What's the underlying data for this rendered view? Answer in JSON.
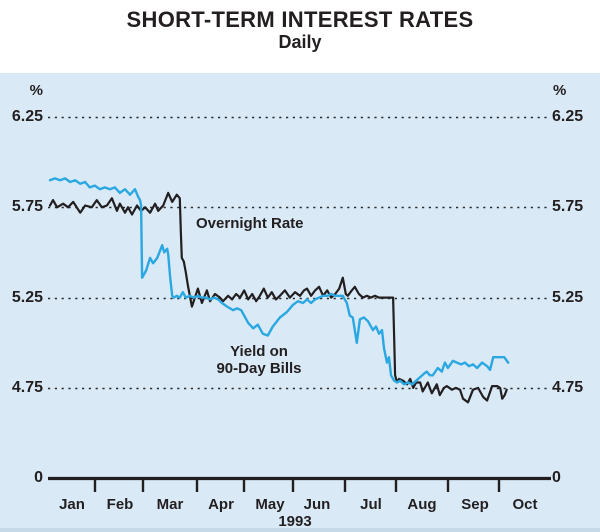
{
  "header": {
    "title": "SHORT-TERM INTEREST RATES",
    "subtitle": "Daily"
  },
  "axes": {
    "unit_left": "%",
    "unit_right": "%",
    "y_ticks": [
      "6.25",
      "5.75",
      "5.25",
      "4.75"
    ],
    "y_zero": "0",
    "x_ticks": [
      "Jan",
      "Feb",
      "Mar",
      "Apr",
      "May",
      "Jun",
      "Jul",
      "Aug",
      "Sep",
      "Oct"
    ],
    "year": "1993"
  },
  "annotations": {
    "overnight": "Overnight Rate",
    "yield_line1": "Yield on",
    "yield_line2": "90-Day Bills"
  },
  "colors": {
    "panel_background": "#d9eaf6",
    "overnight_line": "#231f20",
    "bills_line": "#2ba7e1",
    "grid": "#2b2b2b",
    "text": "#231f20"
  },
  "chart_data": {
    "type": "line",
    "title": "SHORT-TERM INTEREST RATES",
    "subtitle": "Daily",
    "xlabel": "1993 (daily, Jan through early Oct)",
    "ylabel": "%",
    "x_unit": "months since 1993-01-01",
    "x_range": [
      0,
      10
    ],
    "y_gridlines": [
      6.25,
      5.75,
      5.25,
      4.75
    ],
    "y_baseline": 0,
    "grid": "dotted-horizontal",
    "legend_position": "in-plot-annotations",
    "series": [
      {
        "name": "Overnight Rate",
        "color": "#231f20",
        "points": [
          [
            0.04,
            5.76
          ],
          [
            0.1,
            5.79
          ],
          [
            0.18,
            5.75
          ],
          [
            0.3,
            5.77
          ],
          [
            0.4,
            5.75
          ],
          [
            0.5,
            5.78
          ],
          [
            0.64,
            5.72
          ],
          [
            0.74,
            5.76
          ],
          [
            0.87,
            5.75
          ],
          [
            0.97,
            5.79
          ],
          [
            1.07,
            5.75
          ],
          [
            1.17,
            5.76
          ],
          [
            1.27,
            5.8
          ],
          [
            1.37,
            5.73
          ],
          [
            1.43,
            5.77
          ],
          [
            1.53,
            5.72
          ],
          [
            1.59,
            5.75
          ],
          [
            1.67,
            5.71
          ],
          [
            1.77,
            5.76
          ],
          [
            1.85,
            5.73
          ],
          [
            1.93,
            5.75
          ],
          [
            2.03,
            5.72
          ],
          [
            2.13,
            5.77
          ],
          [
            2.19,
            5.73
          ],
          [
            2.29,
            5.76
          ],
          [
            2.39,
            5.83
          ],
          [
            2.47,
            5.78
          ],
          [
            2.56,
            5.82
          ],
          [
            2.62,
            5.8
          ],
          [
            2.64,
            5.62
          ],
          [
            2.66,
            5.47
          ],
          [
            2.7,
            5.45
          ],
          [
            2.74,
            5.39
          ],
          [
            2.78,
            5.32
          ],
          [
            2.86,
            5.2
          ],
          [
            2.98,
            5.3
          ],
          [
            3.06,
            5.22
          ],
          [
            3.16,
            5.29
          ],
          [
            3.22,
            5.23
          ],
          [
            3.32,
            5.27
          ],
          [
            3.42,
            5.25
          ],
          [
            3.48,
            5.23
          ],
          [
            3.58,
            5.26
          ],
          [
            3.66,
            5.24
          ],
          [
            3.74,
            5.27
          ],
          [
            3.82,
            5.25
          ],
          [
            3.9,
            5.29
          ],
          [
            3.98,
            5.24
          ],
          [
            4.06,
            5.27
          ],
          [
            4.14,
            5.23
          ],
          [
            4.21,
            5.26
          ],
          [
            4.29,
            5.3
          ],
          [
            4.37,
            5.25
          ],
          [
            4.45,
            5.28
          ],
          [
            4.53,
            5.24
          ],
          [
            4.61,
            5.26
          ],
          [
            4.71,
            5.29
          ],
          [
            4.81,
            5.25
          ],
          [
            4.91,
            5.28
          ],
          [
            5.01,
            5.26
          ],
          [
            5.09,
            5.29
          ],
          [
            5.15,
            5.3
          ],
          [
            5.23,
            5.26
          ],
          [
            5.31,
            5.29
          ],
          [
            5.39,
            5.31
          ],
          [
            5.47,
            5.26
          ],
          [
            5.55,
            5.29
          ],
          [
            5.63,
            5.25
          ],
          [
            5.71,
            5.27
          ],
          [
            5.79,
            5.3
          ],
          [
            5.86,
            5.36
          ],
          [
            5.92,
            5.27
          ],
          [
            5.96,
            5.26
          ],
          [
            6.04,
            5.29
          ],
          [
            6.1,
            5.31
          ],
          [
            6.18,
            5.27
          ],
          [
            6.26,
            5.25
          ],
          [
            6.34,
            5.26
          ],
          [
            6.42,
            5.25
          ],
          [
            6.5,
            5.26
          ],
          [
            6.58,
            5.25
          ],
          [
            6.66,
            5.25
          ],
          [
            6.74,
            5.25
          ],
          [
            6.82,
            5.25
          ],
          [
            6.86,
            5.25
          ],
          [
            6.88,
            5.04
          ],
          [
            6.9,
            4.82
          ],
          [
            6.94,
            4.78
          ],
          [
            6.98,
            4.8
          ],
          [
            7.06,
            4.79
          ],
          [
            7.14,
            4.77
          ],
          [
            7.2,
            4.8
          ],
          [
            7.26,
            4.75
          ],
          [
            7.32,
            4.78
          ],
          [
            7.4,
            4.78
          ],
          [
            7.45,
            4.73
          ],
          [
            7.55,
            4.78
          ],
          [
            7.63,
            4.72
          ],
          [
            7.73,
            4.77
          ],
          [
            7.79,
            4.71
          ],
          [
            7.87,
            4.75
          ],
          [
            7.93,
            4.76
          ],
          [
            8.03,
            4.74
          ],
          [
            8.11,
            4.75
          ],
          [
            8.19,
            4.74
          ],
          [
            8.25,
            4.69
          ],
          [
            8.35,
            4.67
          ],
          [
            8.45,
            4.74
          ],
          [
            8.55,
            4.75
          ],
          [
            8.65,
            4.7
          ],
          [
            8.73,
            4.68
          ],
          [
            8.83,
            4.76
          ],
          [
            8.93,
            4.76
          ],
          [
            8.99,
            4.75
          ],
          [
            9.03,
            4.69
          ],
          [
            9.08,
            4.71
          ],
          [
            9.12,
            4.74
          ]
        ]
      },
      {
        "name": "Yield on 90-Day Bills",
        "color": "#2ba7e1",
        "points": [
          [
            0.04,
            5.9
          ],
          [
            0.14,
            5.91
          ],
          [
            0.24,
            5.9
          ],
          [
            0.34,
            5.91
          ],
          [
            0.44,
            5.89
          ],
          [
            0.54,
            5.9
          ],
          [
            0.64,
            5.88
          ],
          [
            0.74,
            5.89
          ],
          [
            0.83,
            5.86
          ],
          [
            0.93,
            5.87
          ],
          [
            1.03,
            5.85
          ],
          [
            1.13,
            5.86
          ],
          [
            1.23,
            5.85
          ],
          [
            1.33,
            5.86
          ],
          [
            1.43,
            5.83
          ],
          [
            1.53,
            5.85
          ],
          [
            1.63,
            5.82
          ],
          [
            1.73,
            5.85
          ],
          [
            1.79,
            5.81
          ],
          [
            1.83,
            5.79
          ],
          [
            1.85,
            5.76
          ],
          [
            1.87,
            5.36
          ],
          [
            1.95,
            5.4
          ],
          [
            2.03,
            5.47
          ],
          [
            2.09,
            5.44
          ],
          [
            2.17,
            5.47
          ],
          [
            2.27,
            5.54
          ],
          [
            2.31,
            5.5
          ],
          [
            2.37,
            5.52
          ],
          [
            2.39,
            5.49
          ],
          [
            2.43,
            5.36
          ],
          [
            2.47,
            5.26
          ],
          [
            2.5,
            5.25
          ],
          [
            2.56,
            5.26
          ],
          [
            2.62,
            5.25
          ],
          [
            2.68,
            5.28
          ],
          [
            2.74,
            5.25
          ],
          [
            2.82,
            5.26
          ],
          [
            2.9,
            5.25
          ],
          [
            2.98,
            5.26
          ],
          [
            3.06,
            5.25
          ],
          [
            3.14,
            5.25
          ],
          [
            3.22,
            5.24
          ],
          [
            3.3,
            5.25
          ],
          [
            3.38,
            5.24
          ],
          [
            3.46,
            5.22
          ],
          [
            3.56,
            5.2
          ],
          [
            3.68,
            5.18
          ],
          [
            3.76,
            5.19
          ],
          [
            3.84,
            5.18
          ],
          [
            3.92,
            5.14
          ],
          [
            3.98,
            5.11
          ],
          [
            4.08,
            5.08
          ],
          [
            4.17,
            5.1
          ],
          [
            4.27,
            5.05
          ],
          [
            4.37,
            5.04
          ],
          [
            4.47,
            5.09
          ],
          [
            4.61,
            5.14
          ],
          [
            4.75,
            5.17
          ],
          [
            4.87,
            5.21
          ],
          [
            4.97,
            5.23
          ],
          [
            5.07,
            5.22
          ],
          [
            5.15,
            5.24
          ],
          [
            5.23,
            5.22
          ],
          [
            5.31,
            5.24
          ],
          [
            5.39,
            5.25
          ],
          [
            5.47,
            5.26
          ],
          [
            5.55,
            5.26
          ],
          [
            5.63,
            5.27
          ],
          [
            5.71,
            5.26
          ],
          [
            5.79,
            5.26
          ],
          [
            5.86,
            5.26
          ],
          [
            5.94,
            5.22
          ],
          [
            6.0,
            5.15
          ],
          [
            6.06,
            5.14
          ],
          [
            6.14,
            5.0
          ],
          [
            6.2,
            5.13
          ],
          [
            6.28,
            5.14
          ],
          [
            6.36,
            5.12
          ],
          [
            6.46,
            5.07
          ],
          [
            6.52,
            5.09
          ],
          [
            6.58,
            5.05
          ],
          [
            6.64,
            5.07
          ],
          [
            6.68,
            4.97
          ],
          [
            6.74,
            4.89
          ],
          [
            6.78,
            4.92
          ],
          [
            6.82,
            4.82
          ],
          [
            6.88,
            4.79
          ],
          [
            6.94,
            4.78
          ],
          [
            7.0,
            4.79
          ],
          [
            7.08,
            4.77
          ],
          [
            7.16,
            4.78
          ],
          [
            7.24,
            4.77
          ],
          [
            7.32,
            4.79
          ],
          [
            7.4,
            4.81
          ],
          [
            7.48,
            4.83
          ],
          [
            7.53,
            4.84
          ],
          [
            7.59,
            4.82
          ],
          [
            7.65,
            4.82
          ],
          [
            7.75,
            4.86
          ],
          [
            7.83,
            4.84
          ],
          [
            7.89,
            4.89
          ],
          [
            7.95,
            4.86
          ],
          [
            8.05,
            4.9
          ],
          [
            8.13,
            4.89
          ],
          [
            8.21,
            4.88
          ],
          [
            8.29,
            4.89
          ],
          [
            8.37,
            4.87
          ],
          [
            8.45,
            4.88
          ],
          [
            8.53,
            4.86
          ],
          [
            8.63,
            4.89
          ],
          [
            8.73,
            4.87
          ],
          [
            8.79,
            4.85
          ],
          [
            8.85,
            4.92
          ],
          [
            8.93,
            4.92
          ],
          [
            9.01,
            4.92
          ],
          [
            9.07,
            4.92
          ],
          [
            9.15,
            4.89
          ]
        ]
      }
    ]
  }
}
